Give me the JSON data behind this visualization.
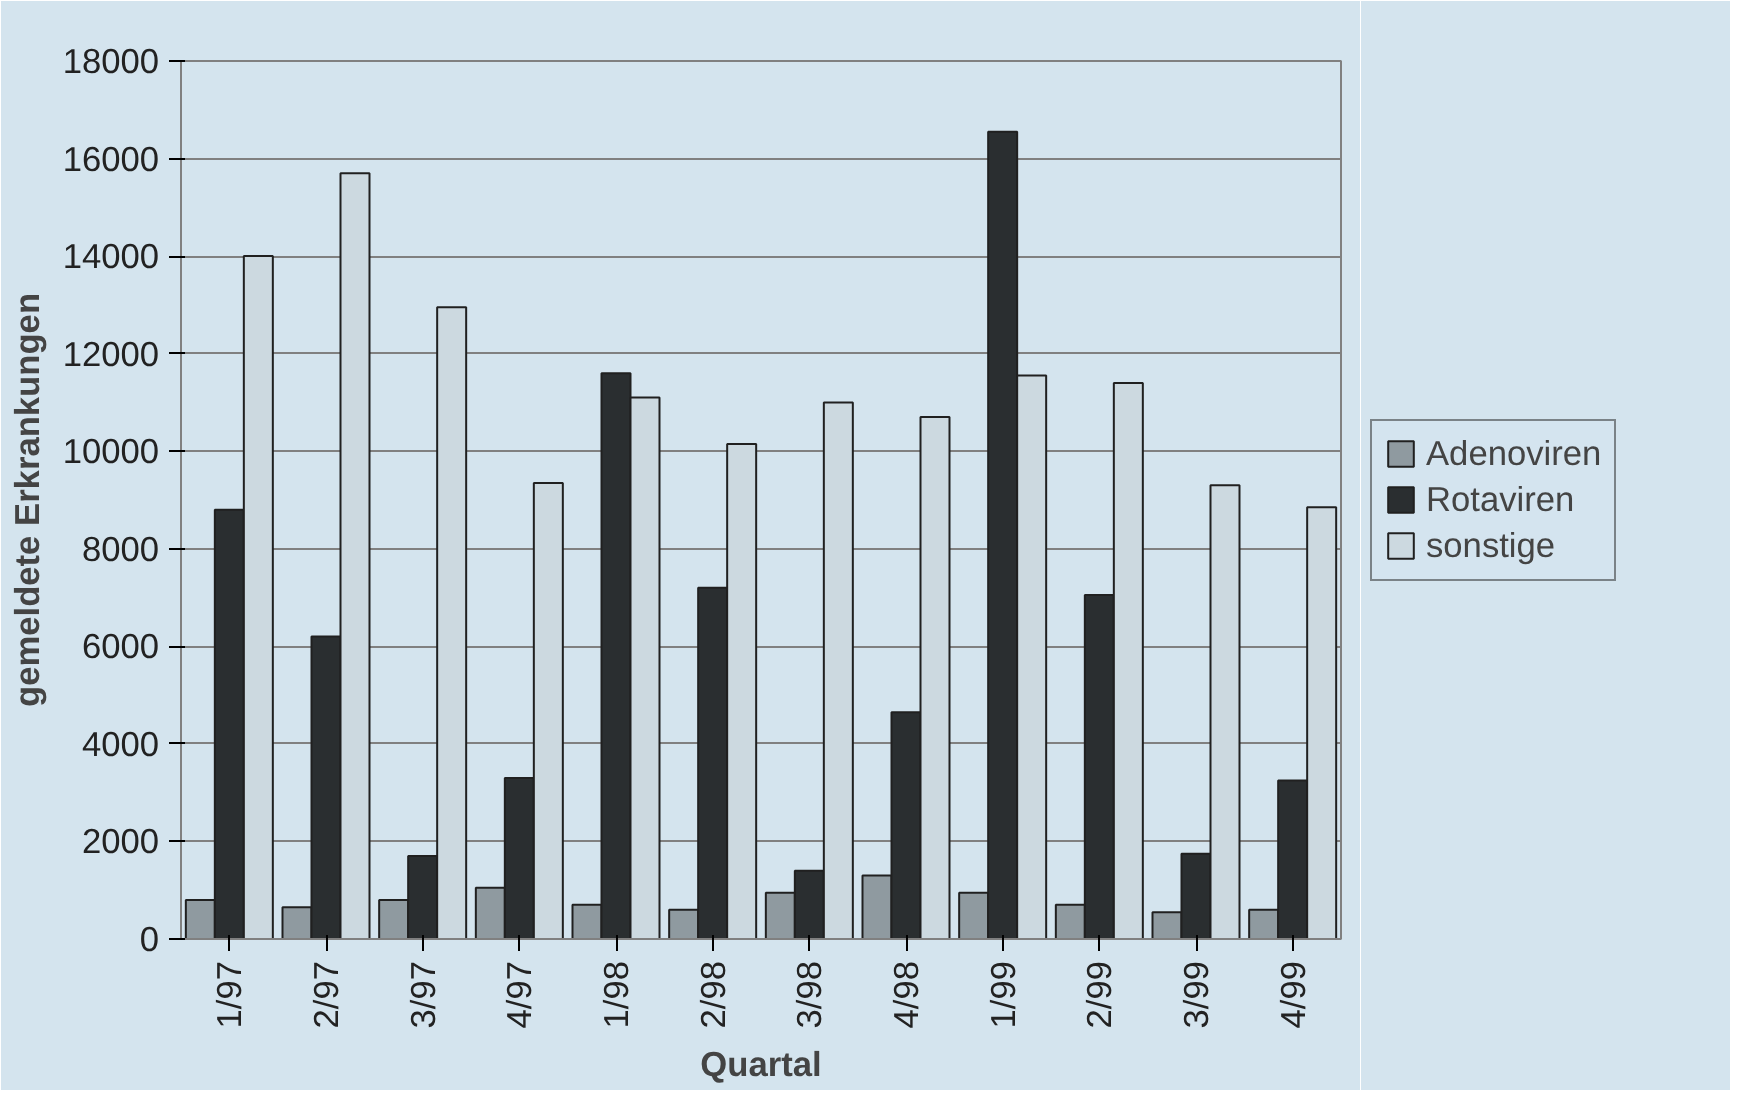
{
  "chart_data": {
    "type": "bar",
    "xlabel": "Quartal",
    "ylabel": "gemeldete Erkrankungen",
    "categories": [
      "1/97",
      "2/97",
      "3/97",
      "4/97",
      "1/98",
      "2/98",
      "3/98",
      "4/98",
      "1/99",
      "2/99",
      "3/99",
      "4/99"
    ],
    "series": [
      {
        "name": "Adenoviren",
        "color": "#8f9aa0",
        "values": [
          800,
          650,
          800,
          1050,
          700,
          600,
          950,
          1300,
          950,
          700,
          550,
          600
        ]
      },
      {
        "name": "Rotaviren",
        "color": "#2a2e30",
        "values": [
          8800,
          6200,
          1700,
          3300,
          11600,
          7200,
          1400,
          4650,
          16550,
          7050,
          1750,
          3250
        ]
      },
      {
        "name": "sonstige",
        "color": "#ccd9e0",
        "values": [
          14000,
          15700,
          12950,
          9350,
          11100,
          10150,
          11000,
          10700,
          11550,
          11400,
          9300,
          8850
        ]
      }
    ],
    "ylim": [
      0,
      18000
    ],
    "yticks": [
      0,
      2000,
      4000,
      6000,
      8000,
      10000,
      12000,
      14000,
      16000,
      18000
    ],
    "grid": "y",
    "legend": "right"
  }
}
